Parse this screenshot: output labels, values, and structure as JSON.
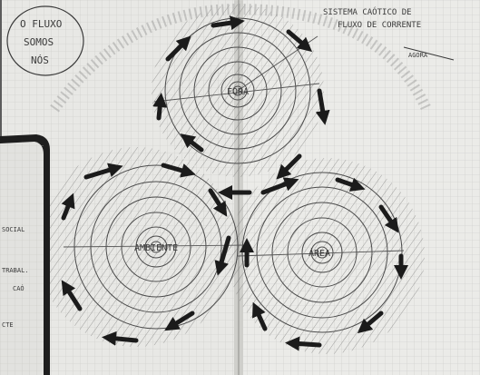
{
  "photo": {
    "subject": "Sketchbook spread with three hand-drawn swirling circles",
    "colors": {
      "paper": "#e9e9e6",
      "grid": "#c8c8c4",
      "ink": "#3a3a3a",
      "arrow": "#1b1b1b",
      "backdrop": "#5c5c5c"
    }
  },
  "notes": {
    "top_left": [
      "O FLUXO",
      "SOMOS",
      "NÓS"
    ],
    "top_right": [
      "SISTEMA CAÓTICO DE",
      "FLUXO DE CORRENTE"
    ],
    "arrow_label": "AGORA",
    "circle_labels": [
      "FORA",
      "AMBIENTE",
      "ÁREA"
    ],
    "side_page": [
      "SOCIAL",
      "TRABAL.",
      "CAÓ",
      "CTE"
    ]
  }
}
